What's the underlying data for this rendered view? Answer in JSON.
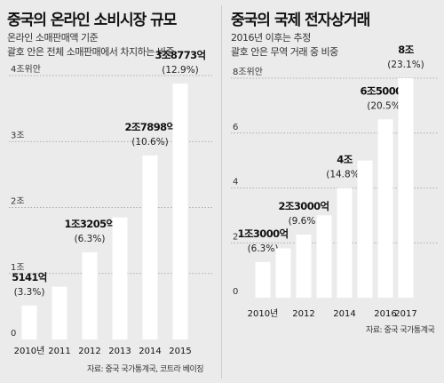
{
  "chart_data": [
    {
      "type": "bar",
      "title": "중국의 온라인 소비시장 규모",
      "subtitle": "온라인 소매판매액 기준",
      "subtitle2": "괄호 안은 전체 소매판매에서 차지하는 비중",
      "unit_note": "위안",
      "categories": [
        "2010년",
        "2011",
        "2012",
        "2013",
        "2014",
        "2015"
      ],
      "values": [
        0.5141,
        0.8,
        1.3205,
        1.85,
        2.7898,
        3.8773
      ],
      "value_labels": [
        "5141억",
        "",
        "1조3205억",
        "",
        "2조7898억",
        "3조8773억"
      ],
      "share_labels": [
        "(3.3%)",
        "",
        "(6.3%)",
        "",
        "(10.6%)",
        "(12.9%)"
      ],
      "ytick_labels": [
        "0",
        "1조",
        "2조",
        "3조",
        "4조위안"
      ],
      "ylim": [
        0,
        4
      ],
      "source": "자료: 중국 국가통계국, 코트라 베이징"
    },
    {
      "type": "bar",
      "title": "중국의 국제 전자상거래",
      "subtitle": "2016년 이후는 추정",
      "subtitle2": "괄호 안은 무역 거래 중 비중",
      "categories": [
        "2010년",
        "",
        "2012",
        "",
        "2014",
        "",
        "2016",
        "2017"
      ],
      "values": [
        1.3,
        1.8,
        2.3,
        3.0,
        4.0,
        5.0,
        6.5,
        8.0
      ],
      "value_labels": [
        "1조3000억",
        "",
        "2조3000억",
        "",
        "4조",
        "",
        "6조5000억",
        "8조"
      ],
      "share_labels": [
        "(6.3%)",
        "",
        "(9.6%)",
        "",
        "(14.8%)",
        "",
        "(20.5%)",
        "(23.1%)"
      ],
      "ytick_labels": [
        "0",
        "2",
        "4",
        "6",
        "8조위안"
      ],
      "ylim": [
        0,
        8
      ],
      "source": "자료: 중국 국가통계국"
    }
  ]
}
